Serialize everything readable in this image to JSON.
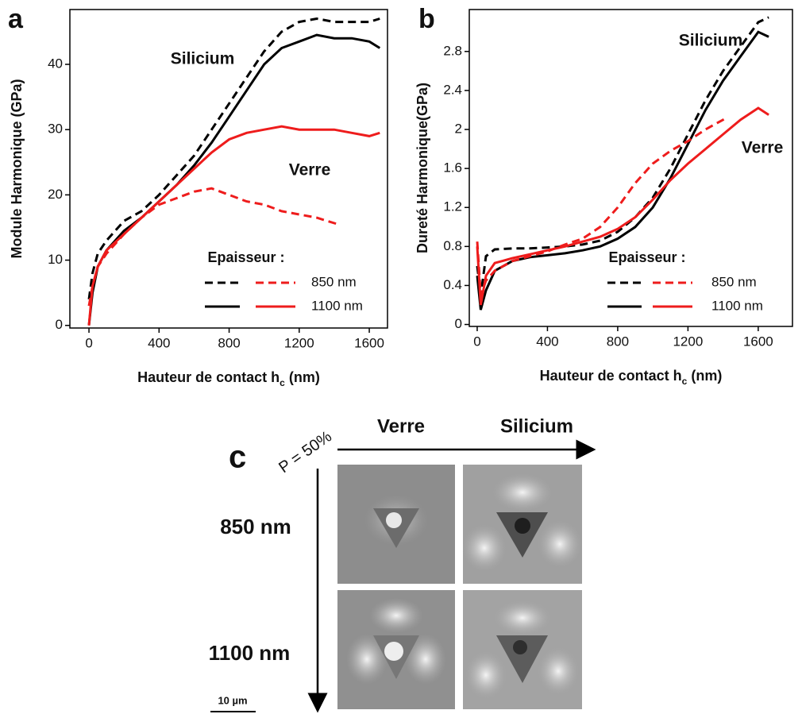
{
  "chart_data": [
    {
      "type": "line",
      "label": "a",
      "ylabel": "Module Harmonique (GPa)",
      "xlabel": [
        "Hauteur de contact h",
        "c",
        " (nm)"
      ],
      "xlim": [
        -109,
        1704
      ],
      "xticks": [
        0,
        400,
        800,
        1200,
        1600
      ],
      "ylim": [
        -0.4,
        48.4
      ],
      "yticks": [
        0,
        10,
        20,
        30,
        40
      ],
      "series": [
        {
          "color": "#000000",
          "dash": true,
          "x": [
            0,
            20,
            50,
            100,
            200,
            300,
            400,
            500,
            600,
            700,
            800,
            900,
            1000,
            1100,
            1200,
            1300,
            1400,
            1500,
            1600,
            1660
          ],
          "values": [
            4,
            8,
            11,
            13,
            16,
            17.5,
            20,
            23,
            26,
            30,
            34,
            38,
            42,
            45,
            46.5,
            47,
            46.5,
            46.5,
            46.5,
            47
          ]
        },
        {
          "color": "#000000",
          "dash": false,
          "x": [
            0,
            20,
            50,
            100,
            200,
            300,
            400,
            500,
            600,
            700,
            800,
            900,
            1000,
            1100,
            1200,
            1300,
            1400,
            1500,
            1600,
            1660
          ],
          "values": [
            0,
            5,
            9,
            11.5,
            14.5,
            16.5,
            19,
            21.5,
            24.5,
            28,
            32,
            36,
            40,
            42.5,
            43.5,
            44.5,
            44,
            44,
            43.5,
            42.5
          ]
        },
        {
          "color": "#ee1c1c",
          "dash": true,
          "x": [
            0,
            20,
            50,
            100,
            200,
            300,
            400,
            500,
            600,
            700,
            800,
            900,
            1000,
            1100,
            1200,
            1300,
            1420
          ],
          "values": [
            3,
            6,
            9,
            11,
            14,
            16.5,
            18.5,
            19.5,
            20.5,
            21,
            20,
            19,
            18.5,
            17.5,
            17,
            16.5,
            15.5
          ]
        },
        {
          "color": "#ee1c1c",
          "dash": false,
          "x": [
            0,
            20,
            50,
            100,
            200,
            300,
            400,
            500,
            600,
            700,
            800,
            900,
            1000,
            1100,
            1200,
            1300,
            1400,
            1500,
            1600,
            1660
          ],
          "values": [
            0,
            6,
            9,
            11.5,
            14,
            16.5,
            19,
            21.5,
            24,
            26.5,
            28.5,
            29.5,
            30,
            30.5,
            30,
            30,
            30,
            29.5,
            29,
            29.5
          ]
        }
      ],
      "annotations": [
        {
          "text": "Silicium",
          "color": "#000000"
        },
        {
          "text": "Verre",
          "color": "#ee1c1c"
        }
      ],
      "legend": {
        "title": "Epaisseur :",
        "entries": [
          {
            "label": "850 nm",
            "dash": true
          },
          {
            "label": "1100 nm",
            "dash": false
          }
        ]
      }
    },
    {
      "type": "line",
      "label": "b",
      "ylabel": "Dureté Harmonique(GPa)",
      "xlabel": [
        "Hauteur de contact h",
        "c",
        " (nm)"
      ],
      "xlim": [
        -45,
        1795
      ],
      "xticks": [
        0,
        400,
        800,
        1200,
        1600
      ],
      "ylim": [
        -0.02,
        3.23
      ],
      "yticks": [
        0,
        0.4,
        0.8,
        1.2,
        1.6,
        2,
        2.4,
        2.8
      ],
      "series": [
        {
          "color": "#000000",
          "dash": true,
          "x": [
            0,
            20,
            50,
            100,
            200,
            300,
            400,
            500,
            600,
            700,
            800,
            900,
            1000,
            1100,
            1200,
            1300,
            1400,
            1500,
            1600,
            1660
          ],
          "values": [
            0.6,
            0.3,
            0.7,
            0.77,
            0.78,
            0.78,
            0.79,
            0.8,
            0.82,
            0.86,
            0.95,
            1.1,
            1.3,
            1.6,
            1.95,
            2.3,
            2.6,
            2.85,
            3.1,
            3.15
          ]
        },
        {
          "color": "#000000",
          "dash": false,
          "x": [
            0,
            20,
            50,
            100,
            200,
            300,
            400,
            500,
            600,
            700,
            800,
            900,
            1000,
            1100,
            1200,
            1300,
            1400,
            1500,
            1600,
            1660
          ],
          "values": [
            0.5,
            0.15,
            0.35,
            0.55,
            0.65,
            0.69,
            0.71,
            0.73,
            0.76,
            0.8,
            0.88,
            1.0,
            1.2,
            1.5,
            1.85,
            2.2,
            2.5,
            2.75,
            3.0,
            2.95
          ]
        },
        {
          "color": "#ee1c1c",
          "dash": true,
          "x": [
            0,
            20,
            50,
            100,
            200,
            300,
            400,
            500,
            600,
            700,
            800,
            900,
            1000,
            1100,
            1200,
            1300,
            1420
          ],
          "values": [
            0.85,
            0.3,
            0.45,
            0.55,
            0.65,
            0.7,
            0.75,
            0.82,
            0.88,
            1.0,
            1.2,
            1.45,
            1.65,
            1.78,
            1.88,
            2.0,
            2.12
          ]
        },
        {
          "color": "#ee1c1c",
          "dash": false,
          "x": [
            0,
            20,
            50,
            100,
            200,
            300,
            400,
            500,
            600,
            700,
            800,
            900,
            1000,
            1100,
            1200,
            1300,
            1400,
            1500,
            1600,
            1660
          ],
          "values": [
            0.8,
            0.2,
            0.5,
            0.63,
            0.68,
            0.72,
            0.76,
            0.8,
            0.85,
            0.9,
            0.98,
            1.1,
            1.28,
            1.48,
            1.65,
            1.8,
            1.95,
            2.1,
            2.22,
            2.15
          ]
        }
      ],
      "annotations": [
        {
          "text": "Silicium",
          "color": "#000000"
        },
        {
          "text": "Verre",
          "color": "#ee1c1c"
        }
      ],
      "legend": {
        "title": "Epaisseur :",
        "entries": [
          {
            "label": "850 nm",
            "dash": true
          },
          {
            "label": "1100 nm",
            "dash": false
          }
        ]
      }
    }
  ],
  "panel_c": {
    "label": "c",
    "pressure": "P = 50%",
    "columns": [
      "Verre",
      "Silicium"
    ],
    "rows": [
      "850 nm",
      "1100 nm"
    ],
    "scale": "10 µm"
  }
}
